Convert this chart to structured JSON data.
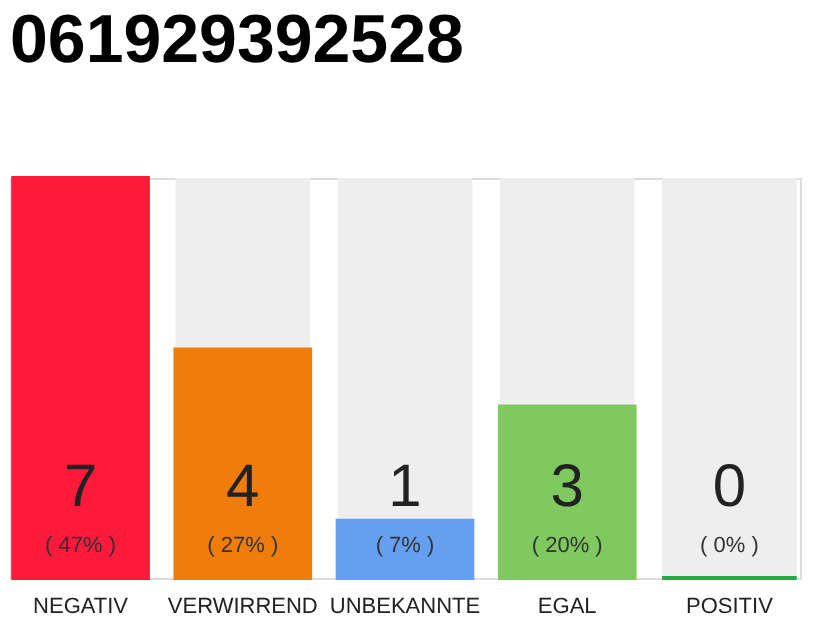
{
  "chart_data": {
    "type": "bar",
    "title": "061929392528",
    "categories": [
      "NEGATIV",
      "VERWIRREND",
      "UNBEKANNTE",
      "EGAL",
      "POSITIV"
    ],
    "values": [
      7,
      4,
      1,
      3,
      0
    ],
    "colors": [
      "#ff1a3c",
      "#f07d0a",
      "#669ef0",
      "#80c860",
      "#22aa44"
    ],
    "data_labels": true,
    "annotations": [
      "( 47% )",
      "( 27% )",
      "( 7% )",
      "( 20% )",
      "( 0% )"
    ]
  }
}
